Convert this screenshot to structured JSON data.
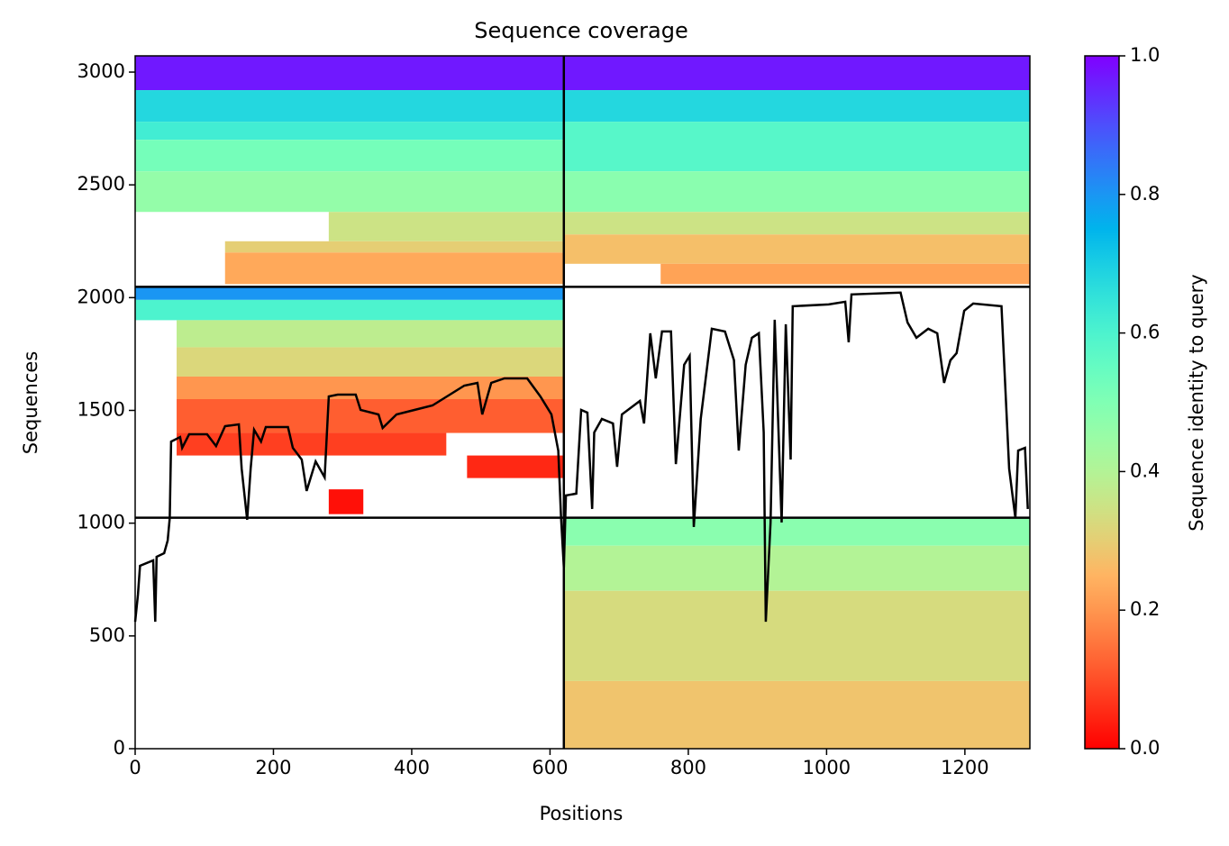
{
  "chart_data": {
    "type": "heatmap",
    "title": "Sequence coverage",
    "xlabel": "Positions",
    "ylabel": "Sequences",
    "colorbar_label": "Sequence identity to query",
    "colormap": "rainbow_r",
    "xlim": [
      0,
      1294
    ],
    "ylim": [
      0,
      3072
    ],
    "xticks": [
      0,
      200,
      400,
      600,
      800,
      1000,
      1200
    ],
    "yticks": [
      0,
      500,
      1000,
      1500,
      2000,
      2500,
      3000
    ],
    "clim": [
      0,
      1
    ],
    "cticks": [
      {
        "value": 0,
        "label": "0.0"
      },
      {
        "value": 0.2,
        "label": "0.2"
      },
      {
        "value": 0.4,
        "label": "0.4"
      },
      {
        "value": 0.6,
        "label": "0.6"
      },
      {
        "value": 0.8,
        "label": "0.8"
      },
      {
        "value": 1,
        "label": "1.0"
      }
    ],
    "dividers": {
      "x": [
        620
      ],
      "y": [
        1024,
        2048
      ]
    },
    "heatmap": [
      {
        "x": [
          0,
          620
        ],
        "y": [
          2920,
          3072
        ],
        "identity": 0.97
      },
      {
        "x": [
          0,
          620
        ],
        "y": [
          2780,
          2920
        ],
        "identity": 0.68
      },
      {
        "x": [
          0,
          620
        ],
        "y": [
          2700,
          2780
        ],
        "identity": 0.62
      },
      {
        "x": [
          0,
          620
        ],
        "y": [
          2560,
          2700
        ],
        "identity": 0.52
      },
      {
        "x": [
          0,
          620
        ],
        "y": [
          2380,
          2560
        ],
        "identity": 0.46
      },
      {
        "x": [
          280,
          620
        ],
        "y": [
          2250,
          2380
        ],
        "identity": 0.35
      },
      {
        "x": [
          130,
          620
        ],
        "y": [
          2200,
          2250
        ],
        "identity": 0.3
      },
      {
        "x": [
          130,
          620
        ],
        "y": [
          2060,
          2200
        ],
        "identity": 0.23
      },
      {
        "x": [
          620,
          1294
        ],
        "y": [
          2920,
          3072
        ],
        "identity": 0.97
      },
      {
        "x": [
          620,
          1294
        ],
        "y": [
          2780,
          2920
        ],
        "identity": 0.68
      },
      {
        "x": [
          620,
          1294
        ],
        "y": [
          2560,
          2780
        ],
        "identity": 0.58
      },
      {
        "x": [
          620,
          1294
        ],
        "y": [
          2380,
          2560
        ],
        "identity": 0.48
      },
      {
        "x": [
          620,
          1294
        ],
        "y": [
          2280,
          2380
        ],
        "identity": 0.35
      },
      {
        "x": [
          620,
          1294
        ],
        "y": [
          2150,
          2280
        ],
        "identity": 0.27
      },
      {
        "x": [
          760,
          1294
        ],
        "y": [
          2060,
          2150
        ],
        "identity": 0.22
      },
      {
        "x": [
          0,
          620
        ],
        "y": [
          1990,
          2048
        ],
        "identity": 0.8
      },
      {
        "x": [
          0,
          620
        ],
        "y": [
          1900,
          1990
        ],
        "identity": 0.6
      },
      {
        "x": [
          60,
          620
        ],
        "y": [
          1780,
          1900
        ],
        "identity": 0.38
      },
      {
        "x": [
          60,
          620
        ],
        "y": [
          1650,
          1780
        ],
        "identity": 0.32
      },
      {
        "x": [
          60,
          620
        ],
        "y": [
          1550,
          1650
        ],
        "identity": 0.2
      },
      {
        "x": [
          60,
          620
        ],
        "y": [
          1400,
          1550
        ],
        "identity": 0.12
      },
      {
        "x": [
          60,
          450
        ],
        "y": [
          1300,
          1400
        ],
        "identity": 0.08
      },
      {
        "x": [
          480,
          620
        ],
        "y": [
          1200,
          1300
        ],
        "identity": 0.05
      },
      {
        "x": [
          280,
          330
        ],
        "y": [
          1040,
          1150
        ],
        "identity": 0.02
      },
      {
        "x": [
          620,
          1294
        ],
        "y": [
          900,
          1024
        ],
        "identity": 0.48
      },
      {
        "x": [
          620,
          1294
        ],
        "y": [
          700,
          900
        ],
        "identity": 0.4
      },
      {
        "x": [
          620,
          1294
        ],
        "y": [
          300,
          700
        ],
        "identity": 0.33
      },
      {
        "x": [
          620,
          1294
        ],
        "y": [
          0,
          300
        ],
        "identity": 0.28
      }
    ],
    "line": {
      "color": "#000000",
      "x": [
        0,
        4,
        7,
        26,
        29,
        31,
        42,
        47,
        50,
        52,
        65,
        68,
        78,
        104,
        117,
        130,
        150,
        154,
        162,
        167,
        172,
        182,
        189,
        221,
        228,
        241,
        248,
        261,
        274,
        280,
        293,
        319,
        326,
        352,
        358,
        378,
        404,
        430,
        476,
        495,
        502,
        515,
        534,
        567,
        586,
        602,
        612,
        616,
        620,
        623,
        638,
        645,
        654,
        661,
        664,
        675,
        691,
        697,
        704,
        730,
        736,
        745,
        753,
        762,
        775,
        782,
        794,
        802,
        808,
        818,
        834,
        853,
        866,
        873,
        883,
        892,
        902,
        909,
        912,
        919,
        925,
        935,
        941,
        948,
        951,
        1003,
        1027,
        1032,
        1036,
        1107,
        1117,
        1130,
        1147,
        1160,
        1170,
        1179,
        1188,
        1199,
        1212,
        1253,
        1264,
        1273,
        1277,
        1287,
        1291
      ],
      "values": [
        563,
        683,
        811,
        835,
        563,
        851,
        867,
        923,
        1023,
        1362,
        1382,
        1334,
        1394,
        1394,
        1342,
        1430,
        1438,
        1242,
        1015,
        1242,
        1414,
        1362,
        1426,
        1426,
        1334,
        1282,
        1143,
        1274,
        1203,
        1562,
        1570,
        1570,
        1502,
        1482,
        1422,
        1482,
        1502,
        1522,
        1610,
        1622,
        1482,
        1622,
        1642,
        1642,
        1562,
        1482,
        1322,
        1023,
        803,
        1123,
        1131,
        1502,
        1490,
        1063,
        1402,
        1462,
        1442,
        1250,
        1482,
        1542,
        1442,
        1842,
        1642,
        1850,
        1850,
        1262,
        1702,
        1742,
        983,
        1462,
        1862,
        1850,
        1722,
        1322,
        1702,
        1822,
        1842,
        1402,
        563,
        1003,
        1902,
        1003,
        1882,
        1282,
        1962,
        1970,
        1982,
        1802,
        2014,
        2022,
        1890,
        1822,
        1862,
        1842,
        1622,
        1722,
        1754,
        1942,
        1974,
        1962,
        1242,
        1023,
        1322,
        1334,
        1063
      ]
    }
  }
}
